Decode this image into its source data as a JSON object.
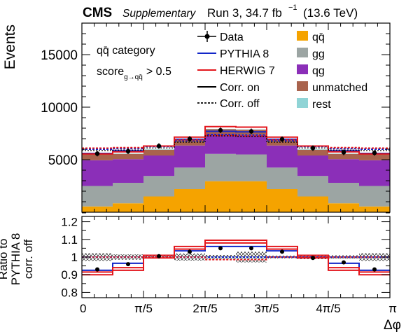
{
  "header": {
    "experiment": "CMS",
    "tag": "Supplementary",
    "run": "Run 3, 34.7 fb",
    "lumi_sup": "−1",
    "energy": "(13.6 TeV)"
  },
  "annotations": {
    "category": "qq̄ category",
    "score_main": "score",
    "score_sub": "g→qq̄",
    "score_cut": "> 0.5"
  },
  "legend": {
    "data": "Data",
    "pythia": "PYTHIA 8",
    "herwig": "HERWIG 7",
    "corr_on": "Corr. on",
    "corr_off": "Corr. off",
    "qqbar": "qq̄",
    "gg": "gg",
    "qg": "qg",
    "unmatched": "unmatched",
    "rest": "rest"
  },
  "colors": {
    "qqbar": "#f5a300",
    "gg": "#9ca5a3",
    "qg": "#8b2fb8",
    "unmatched": "#a9634d",
    "rest": "#90d4d6",
    "pythia": "#1226c8",
    "herwig": "#e3161c",
    "data": "#000000"
  },
  "chart_data": [
    {
      "type": "bar",
      "stacked": true,
      "ylabel": "Events",
      "ylim": [
        0,
        18000
      ],
      "yticks": [
        "5000",
        "10000",
        "15000"
      ],
      "x_bin_edges_over_pi": [
        0,
        0.1,
        0.2,
        0.3,
        0.4,
        0.5,
        0.6,
        0.7,
        0.8,
        0.9,
        1.0
      ],
      "series": [
        {
          "name": "qq̄",
          "values": [
            550,
            850,
            1500,
            2200,
            2950,
            2950,
            2200,
            1500,
            850,
            550
          ]
        },
        {
          "name": "gg",
          "values": [
            1950,
            1950,
            1950,
            2050,
            2600,
            2550,
            2050,
            1950,
            1950,
            1950
          ]
        },
        {
          "name": "qg",
          "values": [
            2450,
            2250,
            1950,
            2100,
            1850,
            1850,
            2100,
            1950,
            2250,
            2450
          ]
        },
        {
          "name": "unmatched",
          "values": [
            600,
            500,
            550,
            550,
            500,
            500,
            550,
            550,
            500,
            600
          ]
        },
        {
          "name": "rest",
          "values": [
            40,
            40,
            40,
            40,
            40,
            40,
            40,
            40,
            40,
            40
          ]
        }
      ],
      "lines": [
        {
          "name": "PYTHIA 8 corr. off",
          "values": [
            6000,
            6050,
            6250,
            6800,
            7400,
            7350,
            6800,
            6250,
            6050,
            6000
          ]
        },
        {
          "name": "PYTHIA 8 corr. on",
          "values": [
            5600,
            5850,
            6300,
            6950,
            7700,
            7650,
            6950,
            6300,
            5850,
            5600
          ]
        },
        {
          "name": "HERWIG 7 corr. off",
          "values": [
            6100,
            6150,
            6300,
            6900,
            7300,
            7250,
            6900,
            6300,
            6150,
            6100
          ]
        },
        {
          "name": "HERWIG 7 corr. on",
          "values": [
            5550,
            5750,
            6300,
            7150,
            8150,
            8100,
            7150,
            6300,
            5750,
            5550
          ]
        }
      ],
      "data_points": [
        5580,
        5800,
        6300,
        6980,
        7800,
        7700,
        6950,
        6100,
        5700,
        5650
      ]
    },
    {
      "type": "line",
      "ylabel": "Ratio to PYTHIA 8 corr. off",
      "xlabel": "Δφ",
      "ylim": [
        0.77,
        1.23
      ],
      "yticks": [
        "0.8",
        "0.9",
        "1",
        "1.1",
        "1.2"
      ],
      "xticks": [
        "0",
        "π/5",
        "2π/5",
        "3π/5",
        "4π/5",
        "π"
      ],
      "pythia_corr_on": [
        0.925,
        0.965,
        1.01,
        1.035,
        1.06,
        1.06,
        1.035,
        1.01,
        0.965,
        0.925
      ],
      "herwig_corr_off": [
        1.0,
        1.0,
        1.0,
        1.0,
        0.985,
        0.985,
        1.0,
        1.0,
        1.0,
        1.0
      ],
      "herwig_corr_on": [
        0.915,
        0.94,
        1.01,
        1.06,
        1.095,
        1.095,
        1.06,
        1.01,
        0.94,
        0.915
      ],
      "herwig_corr_on_lower": [
        0.9,
        0.925,
        0.995,
        1.045,
        1.08,
        1.08,
        1.045,
        0.995,
        0.925,
        0.9
      ],
      "data_points": [
        0.93,
        0.96,
        1.005,
        1.03,
        1.05,
        1.05,
        1.03,
        0.995,
        0.97,
        0.93
      ],
      "uncertainty_band": [
        0.022,
        0.015,
        0.008,
        0.02,
        0.012,
        0.03,
        0.008,
        0.012,
        0.01,
        0.022
      ]
    }
  ]
}
